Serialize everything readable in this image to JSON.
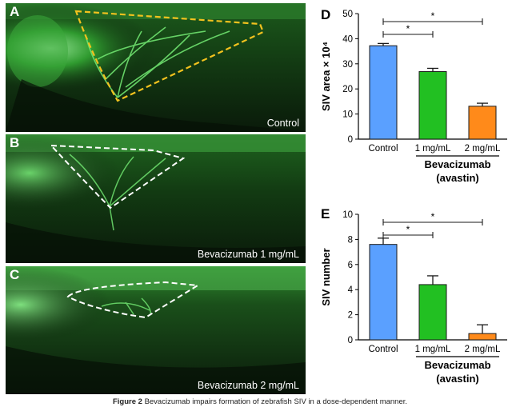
{
  "panels": {
    "A": {
      "letter": "A",
      "label": "Control"
    },
    "B": {
      "letter": "B",
      "label": "Bevacizumab 1 mg/mL"
    },
    "C": {
      "letter": "C",
      "label": "Bevacizumab 2 mg/mL"
    }
  },
  "chart_data": [
    {
      "panel": "D",
      "type": "bar",
      "categories": [
        "Control",
        "1 mg/mL",
        "2 mg/mL"
      ],
      "values": [
        37.2,
        26.9,
        13.1
      ],
      "errors": [
        0.9,
        1.3,
        1.2
      ],
      "colors": [
        "#5aa0ff",
        "#22c022",
        "#ff8a1a"
      ],
      "ylabel": "SIV area × 10⁴",
      "ylim": [
        0,
        50
      ],
      "yticks": [
        0,
        10,
        20,
        30,
        40,
        50
      ],
      "group_label_line1": "Bevacizumab",
      "group_label_line2": "(avastin)",
      "significance": [
        {
          "from": "Control",
          "to": "1 mg/mL",
          "mark": "*"
        },
        {
          "from": "Control",
          "to": "2 mg/mL",
          "mark": "*"
        }
      ]
    },
    {
      "panel": "E",
      "type": "bar",
      "categories": [
        "Control",
        "1 mg/mL",
        "2 mg/mL"
      ],
      "values": [
        7.6,
        4.4,
        0.5
      ],
      "errors": [
        0.5,
        0.7,
        0.7
      ],
      "colors": [
        "#5aa0ff",
        "#22c022",
        "#ff8a1a"
      ],
      "ylabel": "SIV number",
      "ylim": [
        0,
        10
      ],
      "yticks": [
        0,
        2,
        4,
        6,
        8,
        10
      ],
      "group_label_line1": "Bevacizumab",
      "group_label_line2": "(avastin)",
      "significance": [
        {
          "from": "Control",
          "to": "1 mg/mL",
          "mark": "*"
        },
        {
          "from": "Control",
          "to": "2 mg/mL",
          "mark": "*"
        }
      ]
    }
  ],
  "caption": {
    "prefix": "Figure 2",
    "text": "Bevacizumab impairs formation of zebrafish SIV in a dose-dependent manner."
  }
}
